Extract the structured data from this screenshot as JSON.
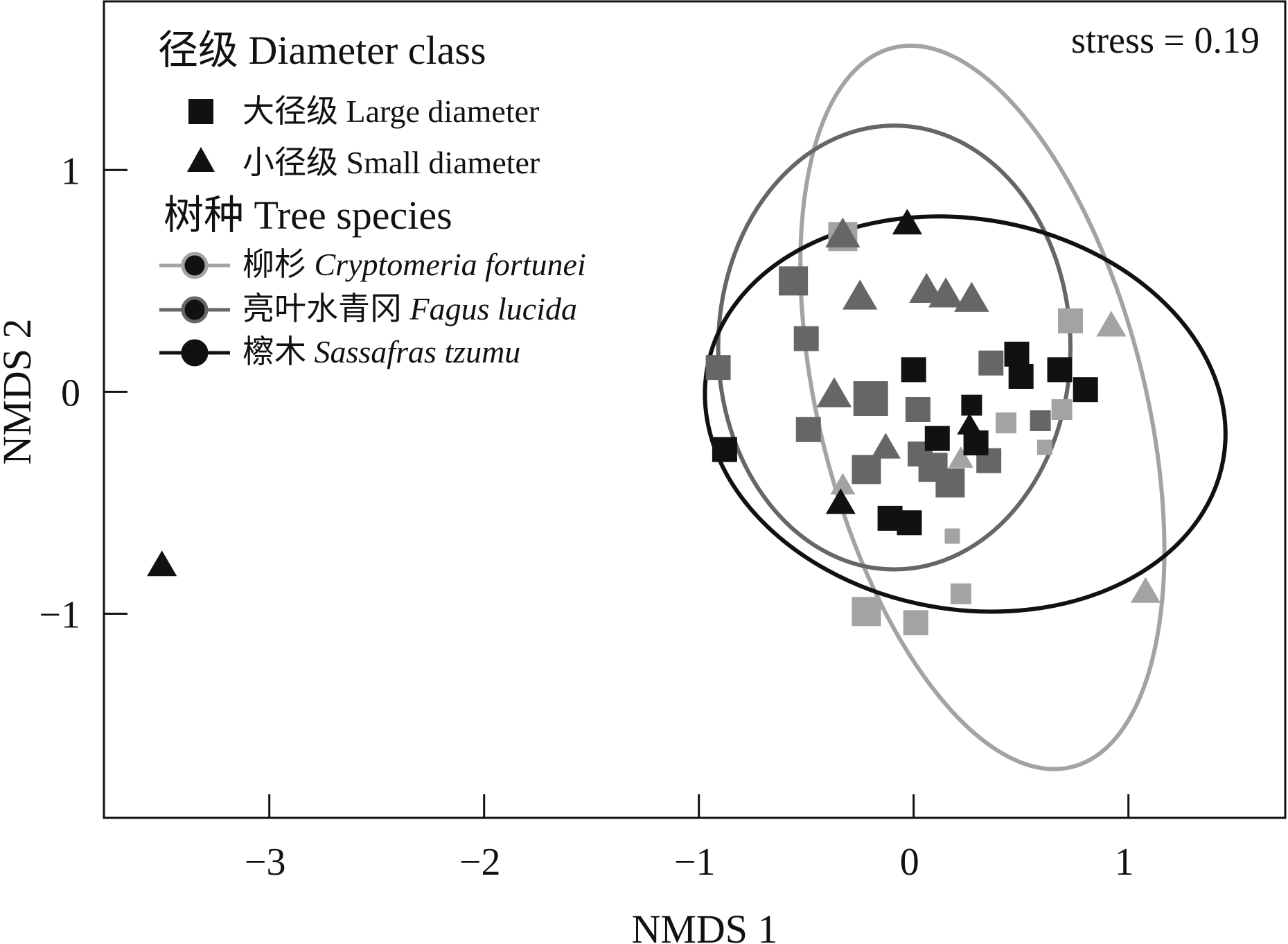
{
  "chart_data": {
    "type": "scatter",
    "title": "",
    "xlabel": "NMDS 1",
    "ylabel": "NMDS 2",
    "xlim": [
      -3.77,
      1.73
    ],
    "ylim": [
      -1.92,
      1.76
    ],
    "xticks": [
      -3,
      -2,
      -1,
      0,
      1
    ],
    "yticks": [
      -1,
      0,
      1
    ],
    "xtick_labels": [
      "−3",
      "−2",
      "−1",
      "0",
      "1"
    ],
    "ytick_labels": [
      "−1",
      "0",
      "1"
    ],
    "stress_text": "stress = 0.19",
    "legend": {
      "position": "top-left",
      "diameter_title": "径级 Diameter class",
      "diameter_items": [
        {
          "shape": "square",
          "zh": "大径级",
          "en": "Large diameter"
        },
        {
          "shape": "triangle",
          "zh": "小径级",
          "en": "Small diameter"
        }
      ],
      "species_title": "树种 Tree species",
      "species_items": [
        {
          "zh": "柳杉",
          "en": "Cryptomeria fortunei",
          "color": "#a3a3a3"
        },
        {
          "zh": "亮叶水青冈",
          "en": "Fagus lucida",
          "color": "#666666"
        },
        {
          "zh": "檫木",
          "en": "Sassafras tzumu",
          "color": "#111111"
        }
      ]
    },
    "ellipses": [
      {
        "series": "Cryptomeria fortunei",
        "color": "#a3a3a3",
        "cx": 0.32,
        "cy": -0.07,
        "rx": 0.76,
        "ry": 1.67,
        "angle": -14
      },
      {
        "series": "Fagus lucida",
        "color": "#666666",
        "cx": -0.09,
        "cy": 0.2,
        "rx": 0.82,
        "ry": 1.0,
        "angle": 0
      },
      {
        "series": "Sassafras tzumu",
        "color": "#111111",
        "cx": 0.24,
        "cy": -0.1,
        "rx": 1.22,
        "ry": 0.88,
        "angle": 10
      }
    ],
    "series": [
      {
        "name": "Cryptomeria fortunei",
        "color": "#a3a3a3",
        "points": [
          {
            "x": -0.33,
            "y": 0.7,
            "shape": "square",
            "size": "l"
          },
          {
            "x": 0.73,
            "y": 0.32,
            "shape": "square",
            "size": "m"
          },
          {
            "x": 0.92,
            "y": 0.3,
            "shape": "triangle",
            "size": "m"
          },
          {
            "x": 0.43,
            "y": -0.14,
            "shape": "square",
            "size": "s"
          },
          {
            "x": 0.69,
            "y": -0.08,
            "shape": "square",
            "size": "s"
          },
          {
            "x": 0.61,
            "y": -0.25,
            "shape": "square",
            "size": "xs"
          },
          {
            "x": 0.22,
            "y": -0.3,
            "shape": "triangle",
            "size": "s"
          },
          {
            "x": -0.33,
            "y": -0.42,
            "shape": "triangle",
            "size": "s"
          },
          {
            "x": 0.18,
            "y": -0.65,
            "shape": "square",
            "size": "xs"
          },
          {
            "x": 0.22,
            "y": -0.91,
            "shape": "square",
            "size": "s"
          },
          {
            "x": -0.22,
            "y": -0.99,
            "shape": "square",
            "size": "l"
          },
          {
            "x": 0.01,
            "y": -1.04,
            "shape": "square",
            "size": "m"
          },
          {
            "x": 1.08,
            "y": -0.9,
            "shape": "triangle",
            "size": "m"
          }
        ]
      },
      {
        "name": "Fagus lucida",
        "color": "#666666",
        "points": [
          {
            "x": -0.33,
            "y": 0.71,
            "shape": "triangle",
            "size": "l"
          },
          {
            "x": -0.56,
            "y": 0.5,
            "shape": "square",
            "size": "l"
          },
          {
            "x": -0.25,
            "y": 0.43,
            "shape": "triangle",
            "size": "l"
          },
          {
            "x": 0.06,
            "y": 0.46,
            "shape": "triangle",
            "size": "l"
          },
          {
            "x": 0.15,
            "y": 0.44,
            "shape": "triangle",
            "size": "l"
          },
          {
            "x": 0.27,
            "y": 0.42,
            "shape": "triangle",
            "size": "l"
          },
          {
            "x": -0.5,
            "y": 0.24,
            "shape": "square",
            "size": "m"
          },
          {
            "x": -0.91,
            "y": 0.11,
            "shape": "square",
            "size": "m"
          },
          {
            "x": -0.37,
            "y": -0.01,
            "shape": "triangle",
            "size": "l"
          },
          {
            "x": -0.2,
            "y": -0.03,
            "shape": "square",
            "size": "xl"
          },
          {
            "x": 0.02,
            "y": -0.08,
            "shape": "square",
            "size": "m"
          },
          {
            "x": 0.36,
            "y": 0.13,
            "shape": "square",
            "size": "m"
          },
          {
            "x": 0.59,
            "y": -0.13,
            "shape": "square",
            "size": "s"
          },
          {
            "x": -0.49,
            "y": -0.17,
            "shape": "square",
            "size": "m"
          },
          {
            "x": -0.13,
            "y": -0.25,
            "shape": "triangle",
            "size": "m"
          },
          {
            "x": -0.22,
            "y": -0.35,
            "shape": "square",
            "size": "l"
          },
          {
            "x": 0.03,
            "y": -0.28,
            "shape": "square",
            "size": "m"
          },
          {
            "x": 0.09,
            "y": -0.34,
            "shape": "square",
            "size": "l"
          },
          {
            "x": 0.17,
            "y": -0.41,
            "shape": "square",
            "size": "l"
          },
          {
            "x": 0.35,
            "y": -0.31,
            "shape": "square",
            "size": "m"
          }
        ]
      },
      {
        "name": "Sassafras tzumu",
        "color": "#111111",
        "points": [
          {
            "x": -0.03,
            "y": 0.76,
            "shape": "triangle",
            "size": "m"
          },
          {
            "x": 0.48,
            "y": 0.17,
            "shape": "square",
            "size": "m"
          },
          {
            "x": 0.5,
            "y": 0.07,
            "shape": "square",
            "size": "m"
          },
          {
            "x": 0.68,
            "y": 0.1,
            "shape": "square",
            "size": "m"
          },
          {
            "x": 0.8,
            "y": 0.01,
            "shape": "square",
            "size": "m"
          },
          {
            "x": 0.0,
            "y": 0.1,
            "shape": "square",
            "size": "m"
          },
          {
            "x": 0.27,
            "y": -0.06,
            "shape": "square",
            "size": "s"
          },
          {
            "x": 0.26,
            "y": -0.15,
            "shape": "triangle",
            "size": "s"
          },
          {
            "x": 0.11,
            "y": -0.21,
            "shape": "square",
            "size": "m"
          },
          {
            "x": 0.29,
            "y": -0.23,
            "shape": "square",
            "size": "m"
          },
          {
            "x": -0.88,
            "y": -0.26,
            "shape": "square",
            "size": "m"
          },
          {
            "x": -0.34,
            "y": -0.5,
            "shape": "triangle",
            "size": "m"
          },
          {
            "x": -0.11,
            "y": -0.57,
            "shape": "square",
            "size": "m"
          },
          {
            "x": -0.02,
            "y": -0.59,
            "shape": "square",
            "size": "m"
          },
          {
            "x": -3.5,
            "y": -0.78,
            "shape": "triangle",
            "size": "m"
          }
        ]
      }
    ]
  }
}
